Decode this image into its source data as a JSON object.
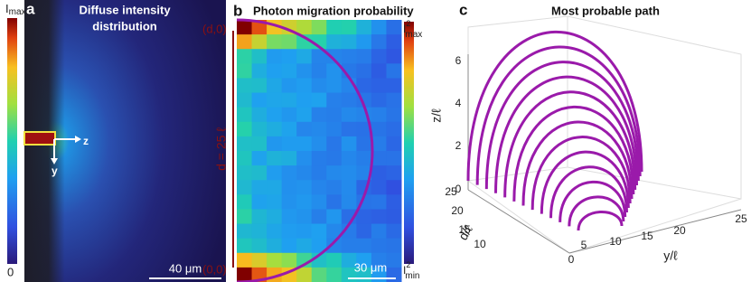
{
  "panel_a": {
    "label": "a",
    "title_lines": [
      "Diffuse intensity",
      "distribution"
    ],
    "colorbar_max": "I",
    "colorbar_max_sub": "max",
    "colorbar_min": "0",
    "scale_bar": "40 μm",
    "axis_z": "z",
    "axis_y": "y"
  },
  "panel_b": {
    "label": "b",
    "title": "Photon migration probability",
    "top_label": "(d,0)",
    "bottom_label": "(0,0)",
    "distance_label": "d = 25 ℓ",
    "colorbar_base": "I",
    "colorbar_sup": "2",
    "colorbar_max_sub": "max",
    "colorbar_min_sub": "min",
    "scale_bar": "30 μm"
  },
  "panel_c": {
    "label": "c",
    "title": "Most probable path",
    "z_label": "z/ℓ",
    "d_label": "d/ℓ",
    "y_label": "y/ℓ",
    "z_ticks": [
      "0",
      "2",
      "4",
      "6"
    ],
    "d_ticks": [
      "10",
      "15",
      "20",
      "25"
    ],
    "y_ticks": [
      "0",
      "5",
      "10",
      "15",
      "20",
      "25"
    ]
  }
}
